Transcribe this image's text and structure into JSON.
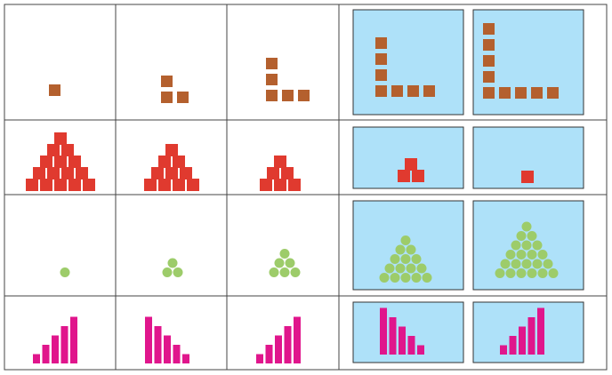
{
  "colors": {
    "background": "#ffffff",
    "grid_line": "#444444",
    "option_fill": "#aee1f9",
    "option_border": "#333333",
    "brown_square": "#b4602e",
    "red_square": "#e03a2f",
    "green_circle": "#9dcc6a",
    "magenta_bar": "#e0168c"
  },
  "rows": [
    {
      "name": "row-brown-l-shapes",
      "shape": "square",
      "color_key": "brown_square",
      "sequence_arm_lengths": [
        1,
        2,
        3
      ],
      "option_arm_lengths": [
        4,
        5
      ]
    },
    {
      "name": "row-red-pyramids",
      "shape": "square",
      "color_key": "red_square",
      "sequence_pyramid_levels": [
        5,
        4,
        3
      ],
      "option_pyramid_levels": [
        2,
        1
      ]
    },
    {
      "name": "row-green-triangles",
      "shape": "circle",
      "color_key": "green_circle",
      "sequence_triangle_levels": [
        1,
        2,
        3
      ],
      "option_triangle_levels": [
        5,
        6
      ]
    },
    {
      "name": "row-magenta-bars",
      "shape": "bar",
      "color_key": "magenta_bar",
      "sequence_bar_heights": [
        [
          1,
          2,
          3,
          4,
          5
        ],
        [
          5,
          4,
          3,
          2,
          1
        ],
        [
          1,
          2,
          3,
          4,
          5
        ]
      ],
      "option_bar_heights": [
        [
          5,
          4,
          3,
          2,
          1
        ],
        [
          1,
          2,
          3,
          4,
          5
        ]
      ]
    }
  ]
}
